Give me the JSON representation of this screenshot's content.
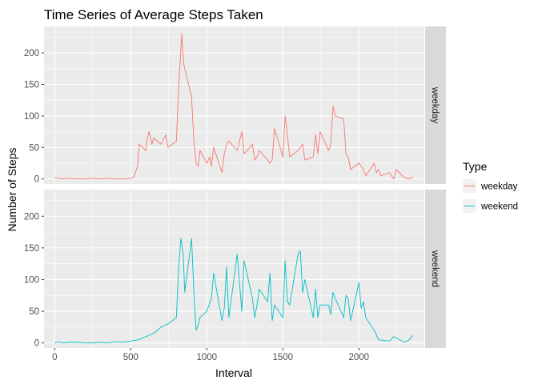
{
  "chart_data": {
    "type": "line",
    "title": "Time Series of Average Steps Taken",
    "xlabel": "Interval",
    "ylabel": "Number of Steps",
    "xlim": [
      -70,
      2430
    ],
    "ylim": [
      -8,
      242
    ],
    "x_ticks": [
      0,
      500,
      1000,
      1500,
      2000
    ],
    "x_minor_ticks": [
      250,
      750,
      1250,
      1750,
      2250
    ],
    "y_ticks": [
      0,
      50,
      100,
      150,
      200
    ],
    "y_minor_ticks": [
      25,
      75,
      125,
      175,
      225
    ],
    "grid": true,
    "legend": {
      "title": "Type",
      "position": "right"
    },
    "facets": [
      {
        "name": "weekday",
        "color": "#F8766D",
        "x": [
          0,
          25,
          50,
          100,
          150,
          200,
          250,
          300,
          350,
          400,
          450,
          500,
          520,
          545,
          555,
          600,
          605,
          620,
          640,
          650,
          700,
          730,
          745,
          800,
          815,
          825,
          835,
          840,
          850,
          855,
          900,
          915,
          930,
          945,
          955,
          1000,
          1020,
          1030,
          1045,
          1100,
          1115,
          1130,
          1145,
          1200,
          1230,
          1245,
          1300,
          1315,
          1330,
          1345,
          1400,
          1415,
          1430,
          1445,
          1500,
          1515,
          1530,
          1545,
          1600,
          1630,
          1645,
          1700,
          1715,
          1730,
          1745,
          1800,
          1815,
          1830,
          1845,
          1900,
          1915,
          1930,
          1945,
          2000,
          2030,
          2045,
          2100,
          2115,
          2130,
          2145,
          2200,
          2230,
          2245,
          2300,
          2330,
          2355
        ],
        "y": [
          2,
          1,
          0,
          1,
          0,
          0,
          1,
          0,
          1,
          0,
          0,
          1,
          3,
          20,
          55,
          45,
          60,
          75,
          55,
          65,
          55,
          70,
          50,
          60,
          145,
          185,
          230,
          210,
          180,
          175,
          130,
          60,
          25,
          20,
          45,
          25,
          35,
          20,
          50,
          10,
          40,
          55,
          60,
          45,
          75,
          40,
          55,
          30,
          35,
          45,
          30,
          25,
          30,
          80,
          35,
          100,
          70,
          35,
          45,
          55,
          30,
          35,
          70,
          40,
          75,
          45,
          55,
          115,
          100,
          95,
          40,
          35,
          15,
          25,
          15,
          5,
          25,
          10,
          15,
          5,
          10,
          0,
          15,
          2,
          0,
          3
        ]
      },
      {
        "name": "weekend",
        "color": "#00BFC4",
        "x": [
          0,
          25,
          50,
          100,
          150,
          200,
          250,
          300,
          350,
          400,
          450,
          500,
          550,
          600,
          650,
          700,
          745,
          800,
          815,
          830,
          845,
          855,
          900,
          915,
          930,
          945,
          955,
          1000,
          1030,
          1045,
          1100,
          1115,
          1130,
          1145,
          1200,
          1215,
          1230,
          1245,
          1300,
          1315,
          1330,
          1345,
          1400,
          1415,
          1430,
          1445,
          1500,
          1515,
          1530,
          1545,
          1600,
          1615,
          1630,
          1645,
          1700,
          1715,
          1730,
          1745,
          1800,
          1815,
          1830,
          1845,
          1900,
          1915,
          1930,
          1945,
          2000,
          2015,
          2030,
          2045,
          2100,
          2130,
          2200,
          2230,
          2300,
          2330,
          2355
        ],
        "y": [
          0,
          2,
          0,
          1,
          1,
          0,
          0,
          1,
          0,
          2,
          1,
          3,
          5,
          10,
          15,
          25,
          30,
          40,
          120,
          165,
          140,
          80,
          165,
          80,
          20,
          30,
          40,
          50,
          70,
          110,
          35,
          55,
          120,
          40,
          140,
          95,
          50,
          130,
          70,
          40,
          60,
          85,
          65,
          110,
          35,
          60,
          40,
          130,
          65,
          60,
          140,
          145,
          80,
          100,
          40,
          85,
          40,
          60,
          60,
          45,
          80,
          70,
          40,
          75,
          70,
          35,
          95,
          55,
          65,
          40,
          20,
          5,
          3,
          10,
          1,
          5,
          12
        ]
      }
    ]
  }
}
